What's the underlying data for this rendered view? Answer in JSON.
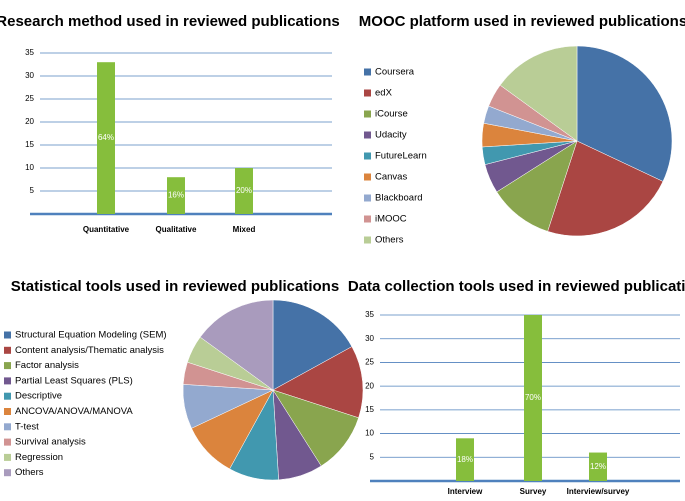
{
  "chart_data": [
    {
      "type": "bar",
      "title": "Research method used in reviewed publications",
      "categories": [
        "Quantitative",
        "Qualitative",
        "Mixed"
      ],
      "values": [
        33,
        8,
        10
      ],
      "percent_labels": [
        "64%",
        "16%",
        "20%"
      ],
      "color": "#86BE3C",
      "ylim": [
        0,
        35
      ],
      "yticks": [
        5,
        10,
        15,
        20,
        25,
        30,
        35
      ],
      "grid": true
    },
    {
      "type": "pie",
      "title": "MOOC platform used in reviewed publications",
      "categories": [
        "Coursera",
        "edX",
        "iCourse",
        "Udacity",
        "FutureLearn",
        "Canvas",
        "Blackboard",
        "iMOOC",
        "Others"
      ],
      "values": [
        32,
        23,
        11,
        5,
        3,
        4,
        3,
        4,
        15
      ],
      "colors": [
        "#4572A7",
        "#AA4643",
        "#89A54E",
        "#71588F",
        "#4198AF",
        "#DB843D",
        "#93A9CF",
        "#D19392",
        "#B9CD96"
      ]
    },
    {
      "type": "pie",
      "title": "Statistical tools used in reviewed publications",
      "categories": [
        "Structural Equation Modeling (SEM)",
        "Content analysis/Thematic analysis",
        "Factor analysis",
        "Partial Least Squares (PLS)",
        "Descriptive",
        "ANCOVA/ANOVA/MANOVA",
        "T-test",
        "Survival analysis",
        "Regression",
        "Others"
      ],
      "values": [
        17,
        13,
        11,
        8,
        9,
        10,
        8,
        4,
        5,
        15
      ],
      "colors": [
        "#4572A7",
        "#AA4643",
        "#89A54E",
        "#71588F",
        "#4198AF",
        "#DB843D",
        "#93A9CF",
        "#D19392",
        "#B9CD96",
        "#A99BBD"
      ]
    },
    {
      "type": "bar",
      "title": "Data collection tools used in reviewed publications",
      "categories": [
        "Interview",
        "Survey",
        "Interview/survey"
      ],
      "values": [
        9,
        35,
        6
      ],
      "percent_labels": [
        "18%",
        "70%",
        "12%"
      ],
      "color": "#86BE3C",
      "ylim": [
        0,
        35
      ],
      "yticks": [
        5,
        10,
        15,
        20,
        25,
        30,
        35
      ],
      "grid": true
    }
  ]
}
